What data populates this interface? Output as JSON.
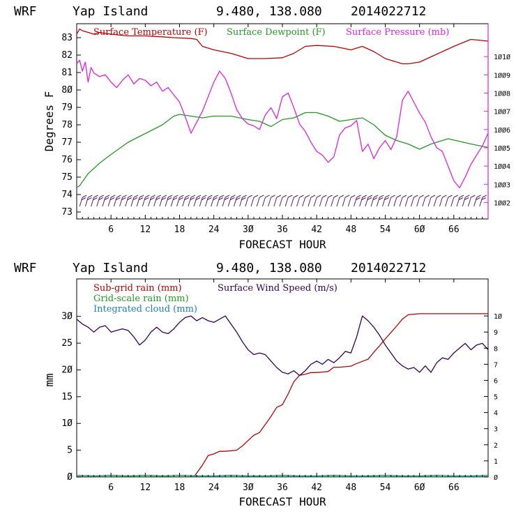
{
  "header": {
    "model": "WRF",
    "location": "Yap Island",
    "coords": "9.480, 138.080",
    "run": "2014022712"
  },
  "colors": {
    "temp": "#bb0000",
    "dew": "#229922",
    "pres": "#dd22dd",
    "rain": "#bb0000",
    "grid": "#229922",
    "cloud": "#1a7fbf",
    "wind": "#330055",
    "barb": "#5a1a6a"
  },
  "chart_data": [
    {
      "type": "line",
      "title": "WRF Yap Island 9.480, 138.080 2014022712",
      "xlabel": "FORECAST HOUR",
      "ylabel": "Degrees F",
      "xlim": [
        0,
        72
      ],
      "ylim": [
        72.6,
        83.8
      ],
      "y2lim": [
        1001.1,
        1011.8
      ],
      "xticks": [
        6,
        12,
        18,
        24,
        30,
        36,
        42,
        48,
        54,
        60,
        66
      ],
      "yticks": [
        73,
        74,
        75,
        76,
        77,
        78,
        79,
        80,
        81,
        82,
        83
      ],
      "y2ticks": [
        1002,
        1003,
        1004,
        1005,
        1006,
        1007,
        1008,
        1009,
        1010
      ],
      "legend": [
        "Surface Temperature (F)",
        "Surface Dewpoint (F)",
        "Surface Pressure (mb)"
      ],
      "series": [
        {
          "name": "Surface Temperature (F)",
          "axis": "left",
          "x": [
            0,
            0.5,
            1,
            2,
            3,
            4,
            6,
            9,
            12,
            15,
            17,
            20,
            21,
            22,
            24,
            27,
            30,
            33,
            36,
            38,
            40,
            42,
            45,
            48,
            50,
            52,
            54,
            56,
            57,
            58,
            60,
            62,
            66,
            69,
            72
          ],
          "values": [
            83.2,
            83.5,
            83.4,
            83.3,
            83.2,
            83.3,
            83.2,
            83.1,
            83.1,
            83.05,
            83.0,
            82.95,
            82.9,
            82.5,
            82.3,
            82.1,
            81.8,
            81.8,
            81.85,
            82.1,
            82.5,
            82.55,
            82.5,
            82.3,
            82.5,
            82.2,
            81.8,
            81.6,
            81.5,
            81.5,
            81.6,
            81.9,
            82.5,
            82.9,
            82.8
          ]
        },
        {
          "name": "Surface Dewpoint (F)",
          "axis": "left",
          "x": [
            0,
            0.5,
            2,
            4,
            6,
            9,
            12,
            15,
            17,
            18,
            20,
            22,
            24,
            27,
            30,
            32,
            34,
            36,
            38,
            40,
            42,
            44,
            46,
            48,
            50,
            52,
            54,
            56,
            58,
            60,
            62,
            65,
            69,
            72
          ],
          "values": [
            74.4,
            74.5,
            75.2,
            75.8,
            76.3,
            77.0,
            77.5,
            78.0,
            78.5,
            78.6,
            78.5,
            78.4,
            78.5,
            78.5,
            78.3,
            78.2,
            77.9,
            78.3,
            78.4,
            78.7,
            78.7,
            78.5,
            78.2,
            78.3,
            78.4,
            78.0,
            77.4,
            77.1,
            76.9,
            76.6,
            76.9,
            77.2,
            76.9,
            76.7
          ]
        },
        {
          "name": "Surface Pressure (mb)",
          "axis": "right",
          "x": [
            0,
            0.5,
            1,
            1.5,
            2,
            2.5,
            3,
            4,
            5,
            6,
            7,
            8,
            9,
            10,
            11,
            12,
            13,
            14,
            15,
            16,
            17,
            18,
            19,
            20,
            21,
            22,
            23,
            24,
            25,
            26,
            27,
            28,
            29,
            30,
            31,
            32,
            33,
            34,
            35,
            36,
            37,
            38,
            39,
            40,
            41,
            42,
            43,
            44,
            45,
            46,
            47,
            48,
            49,
            50,
            51,
            52,
            53,
            54,
            55,
            56,
            57,
            58,
            59,
            60,
            61,
            62,
            63,
            64,
            65,
            66,
            67,
            68,
            69,
            70,
            71,
            72
          ],
          "values": [
            1009.6,
            1009.8,
            1009.2,
            1009.7,
            1008.6,
            1009.4,
            1009.1,
            1008.9,
            1009.0,
            1008.6,
            1008.3,
            1008.7,
            1009.0,
            1008.5,
            1008.8,
            1008.7,
            1008.4,
            1008.6,
            1008.1,
            1008.3,
            1007.9,
            1007.5,
            1006.7,
            1005.8,
            1006.4,
            1007.0,
            1007.8,
            1008.6,
            1009.2,
            1008.8,
            1008.0,
            1007.1,
            1006.6,
            1006.3,
            1006.2,
            1006.0,
            1006.8,
            1007.2,
            1006.6,
            1007.8,
            1008.0,
            1007.2,
            1006.3,
            1005.9,
            1005.3,
            1004.8,
            1004.6,
            1004.2,
            1004.5,
            1005.7,
            1006.1,
            1006.2,
            1006.5,
            1004.8,
            1005.2,
            1004.4,
            1005.0,
            1005.4,
            1004.9,
            1005.6,
            1007.6,
            1008.1,
            1007.5,
            1006.9,
            1006.4,
            1005.6,
            1005.0,
            1004.8,
            1004.0,
            1003.2,
            1002.8,
            1003.4,
            1004.1,
            1004.6,
            1005.1,
            1005.8
          ]
        }
      ]
    },
    {
      "type": "line",
      "title": "WRF Yap Island 9.480, 138.080 2014022712",
      "xlabel": "FORECAST HOUR",
      "ylabel": "mm",
      "xlim": [
        0,
        72
      ],
      "ylim": [
        0,
        37
      ],
      "y2lim": [
        0,
        12.3
      ],
      "xticks": [
        6,
        12,
        18,
        24,
        30,
        36,
        42,
        48,
        54,
        60,
        66
      ],
      "yticks": [
        0,
        5,
        10,
        15,
        20,
        25,
        30
      ],
      "y2ticks": [
        0,
        1,
        2,
        3,
        4,
        5,
        6,
        7,
        8,
        9,
        10
      ],
      "legend": [
        "Sub-grid rain (mm)",
        "Grid-scale rain (mm)",
        "Integrated cloud (mm)",
        "Surface Wind Speed (m/s)"
      ],
      "series": [
        {
          "name": "Sub-grid rain (mm)",
          "axis": "left",
          "x": [
            0,
            20.5,
            22,
            23,
            24,
            25,
            26,
            28,
            29,
            30,
            31,
            32,
            33,
            34,
            35,
            36,
            37,
            38,
            39,
            40,
            41,
            42,
            43,
            44,
            45,
            46,
            47,
            48,
            49,
            50,
            51,
            52,
            53,
            54,
            55,
            56,
            57,
            58,
            60,
            65,
            72
          ],
          "values": [
            0,
            0,
            2.2,
            4.0,
            4.3,
            4.8,
            4.8,
            5.0,
            5.8,
            6.8,
            7.8,
            8.3,
            9.8,
            11.3,
            13.0,
            13.5,
            15.5,
            17.8,
            19.0,
            19.2,
            19.5,
            19.5,
            19.6,
            19.7,
            20.5,
            20.5,
            20.6,
            20.7,
            21.2,
            21.6,
            22.0,
            23.3,
            24.5,
            25.8,
            27.0,
            28.2,
            29.5,
            30.3,
            30.5,
            30.5,
            30.5
          ]
        },
        {
          "name": "Grid-scale rain (mm)",
          "axis": "left",
          "x": [
            0,
            72
          ],
          "values": [
            0.05,
            0.05
          ]
        },
        {
          "name": "Integrated cloud (mm)",
          "axis": "left",
          "x": [
            0,
            3,
            6,
            9,
            12,
            15,
            18,
            21,
            24,
            27,
            30,
            33,
            36,
            39,
            42,
            45,
            48,
            51,
            54,
            57,
            60,
            63,
            66,
            69,
            72
          ],
          "values": [
            0.3,
            0.2,
            0.3,
            0.2,
            0.3,
            0.2,
            0.3,
            0.2,
            0.2,
            0.3,
            0.2,
            0.2,
            0.3,
            0.2,
            0.2,
            0.3,
            0.2,
            0.2,
            0.3,
            0.2,
            0.2,
            0.3,
            0.2,
            0.2,
            0.3
          ]
        },
        {
          "name": "Surface Wind Speed (m/s)",
          "axis": "right",
          "x": [
            0,
            1,
            2,
            3,
            4,
            5,
            6,
            7,
            8,
            9,
            10,
            11,
            12,
            13,
            14,
            15,
            16,
            17,
            18,
            19,
            20,
            21,
            22,
            23,
            24,
            25,
            26,
            27,
            28,
            29,
            30,
            31,
            32,
            33,
            34,
            35,
            36,
            37,
            38,
            39,
            40,
            41,
            42,
            43,
            44,
            45,
            46,
            47,
            48,
            49,
            50,
            51,
            52,
            53,
            54,
            55,
            56,
            57,
            58,
            59,
            60,
            61,
            62,
            63,
            64,
            65,
            66,
            67,
            68,
            69,
            70,
            71,
            72
          ],
          "values": [
            9.8,
            9.5,
            9.3,
            9.0,
            9.3,
            9.4,
            9.0,
            9.1,
            9.2,
            9.1,
            8.7,
            8.2,
            8.5,
            9.0,
            9.3,
            9.0,
            8.9,
            9.2,
            9.6,
            9.9,
            10.0,
            9.7,
            9.9,
            9.7,
            9.6,
            9.8,
            10.0,
            9.5,
            9.0,
            8.4,
            7.9,
            7.6,
            7.7,
            7.6,
            7.2,
            6.8,
            6.5,
            6.4,
            6.6,
            6.3,
            6.6,
            7.0,
            7.2,
            7.0,
            7.3,
            7.1,
            7.4,
            7.8,
            7.7,
            8.7,
            10.0,
            9.7,
            9.3,
            8.8,
            8.2,
            7.7,
            7.2,
            6.9,
            6.7,
            6.8,
            6.5,
            6.9,
            6.5,
            7.1,
            7.4,
            7.3,
            7.7,
            8.0,
            8.3,
            7.9,
            8.2,
            8.3,
            7.9
          ]
        }
      ],
      "wind_barb_hours": [
        1,
        2,
        3,
        4,
        5,
        6,
        7,
        8,
        9,
        10,
        11,
        12,
        13,
        14,
        15,
        16,
        17,
        18,
        19,
        20,
        21,
        22,
        23,
        24,
        25,
        26,
        27,
        28,
        29,
        30,
        31,
        32,
        33,
        34,
        35,
        36,
        37,
        38,
        39,
        40,
        41,
        42,
        43,
        44,
        45,
        46,
        47,
        48,
        49,
        50,
        51,
        52,
        53,
        54,
        55,
        56,
        57,
        58,
        59,
        60,
        61,
        62,
        63,
        64,
        65,
        66,
        67,
        68,
        69,
        70,
        71
      ]
    }
  ]
}
